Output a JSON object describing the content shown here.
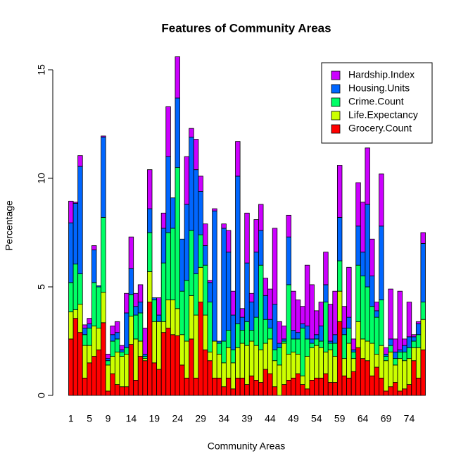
{
  "chart_data": {
    "type": "bar",
    "stacked": true,
    "title": "Features of Community Areas",
    "x_label": "Community Areas",
    "y_label": "Percentage",
    "categories": [
      "1",
      null,
      null,
      null,
      "5",
      null,
      null,
      null,
      "9",
      null,
      null,
      null,
      null,
      "14",
      null,
      null,
      null,
      null,
      "19",
      null,
      null,
      null,
      null,
      "24",
      null,
      null,
      null,
      null,
      "29",
      null,
      null,
      null,
      null,
      "34",
      null,
      null,
      null,
      null,
      "39",
      null,
      null,
      null,
      null,
      "44",
      null,
      null,
      null,
      null,
      "49",
      null,
      null,
      null,
      null,
      "54",
      null,
      null,
      null,
      null,
      "59",
      null,
      null,
      null,
      null,
      "64",
      null,
      null,
      null,
      null,
      "69",
      null,
      null,
      null,
      null,
      "74",
      null,
      null,
      null
    ],
    "series": [
      {
        "name": "Grocery.Count",
        "color": "#ff0000",
        "values": [
          2.6,
          3.55,
          2.9,
          0.8,
          1.5,
          1.8,
          2.1,
          3.35,
          0.2,
          1.0,
          0.5,
          0.4,
          0.4,
          2.35,
          0.7,
          1.8,
          1.6,
          4.3,
          1.5,
          1.2,
          2.9,
          3.1,
          2.8,
          2.75,
          1.4,
          0.8,
          2.6,
          0.8,
          4.3,
          2.1,
          1.6,
          0.8,
          0.8,
          0.4,
          0.8,
          0.3,
          0.8,
          0.8,
          0.5,
          0.9,
          0.7,
          0.6,
          1.2,
          1.0,
          0.4,
          0.0,
          0.5,
          0.7,
          0.8,
          1.0,
          0.5,
          0.3,
          0.7,
          0.8,
          0.8,
          1.0,
          0.6,
          0.6,
          3.4,
          0.9,
          0.8,
          1.1,
          2.2,
          1.7,
          1.6,
          0.9,
          1.3,
          0.8,
          0.2,
          0.4,
          0.6,
          0.2,
          0.3,
          0.5,
          1.6,
          0.8,
          2.1
        ]
      },
      {
        "name": "Life.Expectancy",
        "color": "#ccff00",
        "values": [
          1.25,
          0.4,
          1.3,
          1.5,
          0.8,
          1.4,
          1.0,
          1.4,
          1.2,
          0.8,
          1.5,
          1.4,
          1.5,
          1.3,
          1.9,
          0.7,
          0.1,
          1.4,
          1.9,
          2.2,
          0.5,
          1.3,
          1.6,
          1.25,
          1.4,
          1.7,
          2.0,
          2.9,
          1.6,
          1.6,
          0.4,
          1.7,
          1.1,
          1.1,
          1.4,
          1.2,
          1.4,
          1.6,
          1.8,
          1.6,
          1.6,
          1.5,
          1.2,
          1.6,
          1.2,
          1.4,
          1.9,
          1.2,
          1.2,
          0.9,
          0.4,
          1.5,
          1.5,
          1.5,
          1.4,
          1.0,
          1.5,
          1.2,
          1.4,
          0.8,
          1.6,
          0.6,
          1.2,
          0.9,
          0.9,
          1.5,
          0.6,
          1.5,
          1.4,
          1.6,
          0.8,
          1.5,
          1.3,
          1.2,
          0.6,
          1.4,
          1.4
        ]
      },
      {
        "name": "Crime.Count",
        "color": "#00ff66",
        "values": [
          1.35,
          2.1,
          1.4,
          0.5,
          0.8,
          2.0,
          1.9,
          3.45,
          0.2,
          0.7,
          0.6,
          0.2,
          0.3,
          1.0,
          1.1,
          1.3,
          0.1,
          1.8,
          1.0,
          0.0,
          2.7,
          3.1,
          3.3,
          6.5,
          2.0,
          2.8,
          3.0,
          1.9,
          1.5,
          2.3,
          2.3,
          0.0,
          0.5,
          1.0,
          0.8,
          0.6,
          1.1,
          0.6,
          1.1,
          0.5,
          1.3,
          3.9,
          1.1,
          0.5,
          0.5,
          0.8,
          0.1,
          3.2,
          0.6,
          0.7,
          2.2,
          0.8,
          0.2,
          0.3,
          0.3,
          2.3,
          0.3,
          0.6,
          1.4,
          1.1,
          0.7,
          0.3,
          2.6,
          2.9,
          2.5,
          1.7,
          1.7,
          2.1,
          0.2,
          0.3,
          0.3,
          0.3,
          0.4,
          0.5,
          0.3,
          0.6,
          0.8
        ]
      },
      {
        "name": "Housing.Units",
        "color": "#0066ff",
        "values": [
          2.75,
          2.8,
          4.95,
          0.3,
          0.2,
          1.5,
          0.05,
          3.7,
          0.1,
          0.3,
          0.3,
          0.1,
          1.6,
          1.2,
          0.4,
          0.5,
          0.1,
          1.1,
          0.1,
          0.3,
          1.6,
          3.5,
          1.4,
          3.2,
          2.4,
          3.5,
          4.3,
          4.8,
          2.0,
          0.9,
          0.9,
          6.0,
          0.1,
          5.2,
          3.6,
          1.6,
          6.8,
          0.6,
          2.7,
          1.3,
          3.0,
          1.6,
          1.1,
          0.4,
          2.1,
          0.2,
          0.1,
          2.2,
          0.4,
          0.3,
          0.2,
          0.6,
          0.2,
          0.2,
          0.7,
          0.8,
          0.1,
          0.4,
          2.0,
          0.3,
          0.5,
          0.1,
          1.8,
          1.1,
          3.8,
          1.4,
          0.3,
          3.4,
          0.1,
          0.3,
          0.3,
          0.1,
          0.3,
          0.5,
          0.2,
          0.5,
          2.7
        ]
      },
      {
        "name": "Hardship.Index",
        "color": "#cc00ff",
        "values": [
          1.0,
          0.05,
          0.5,
          0.15,
          0.25,
          0.2,
          0.0,
          0.05,
          0.2,
          0.4,
          0.5,
          0.2,
          0.9,
          1.45,
          0.6,
          0.8,
          1.2,
          1.8,
          0.0,
          0.8,
          0.7,
          2.3,
          0.0,
          1.9,
          0.0,
          2.2,
          0.4,
          1.4,
          0.7,
          1.0,
          0.1,
          0.1,
          0.0,
          0.2,
          1.0,
          1.1,
          1.6,
          0.4,
          2.3,
          0.4,
          1.5,
          1.2,
          0.8,
          1.4,
          3.5,
          1.0,
          0.6,
          1.0,
          1.8,
          1.5,
          0.8,
          2.8,
          2.5,
          1.1,
          1.1,
          1.5,
          1.7,
          2.0,
          2.4,
          1.0,
          2.3,
          0.5,
          2.0,
          2.3,
          2.6,
          1.7,
          0.4,
          2.4,
          0.3,
          2.3,
          0.6,
          2.7,
          0.3,
          1.6,
          0.1,
          0.1,
          0.5
        ]
      }
    ],
    "ylim": [
      0,
      15.7
    ],
    "yticks": [
      0,
      5,
      10,
      15
    ],
    "legend_position": "topright"
  }
}
